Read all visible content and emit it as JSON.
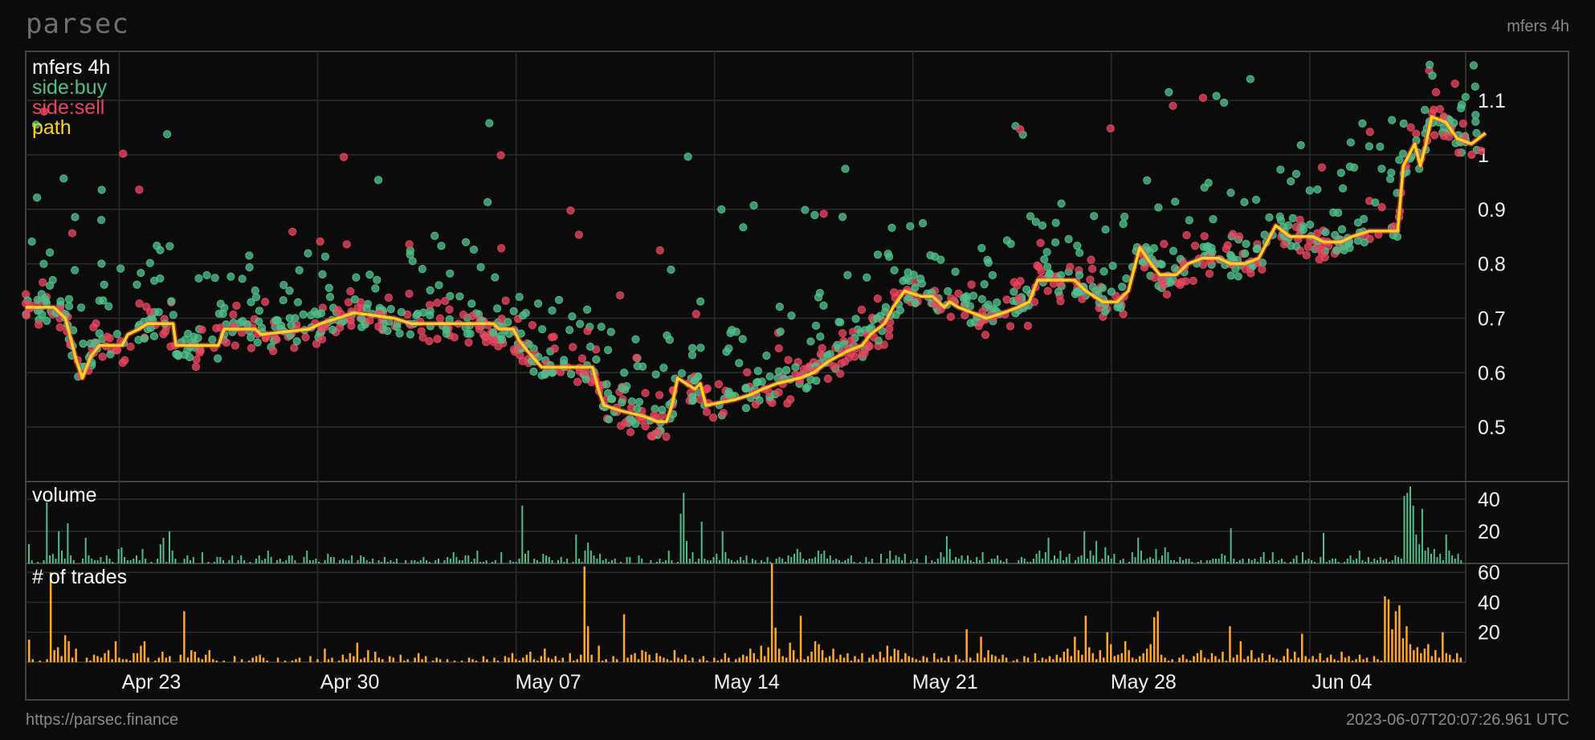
{
  "header": {
    "brand": "parsec",
    "pair": "mfers 4h"
  },
  "footer": {
    "url": "https://parsec.finance",
    "timestamp": "2023-06-07T20:07:26.961 UTC"
  },
  "colors": {
    "buy": "#4fbf8a",
    "sell": "#e8455e",
    "path": "#ffd21f",
    "trades": "#ffa828",
    "grid": "#2c2c2c",
    "frame": "#555555"
  },
  "chart_data": [
    {
      "type": "scatter",
      "legend": [
        "mfers 4h",
        "side:buy",
        "side:sell",
        "path"
      ],
      "legend_placement": "top-left",
      "x_ticks": [
        "Apr 23",
        "Apr 30",
        "May 07",
        "May 14",
        "May 21",
        "May 28",
        "Jun 04"
      ],
      "y_ticks": [
        0.5,
        0.6,
        0.7,
        0.8,
        0.9,
        1,
        1.1
      ],
      "ylim": [
        0.4,
        1.19
      ],
      "xlim": [
        0,
        50.8
      ],
      "grid": true,
      "path": [
        [
          0,
          0.72
        ],
        [
          1,
          0.72
        ],
        [
          1.4,
          0.7
        ],
        [
          1.8,
          0.62
        ],
        [
          2.0,
          0.59
        ],
        [
          2.3,
          0.63
        ],
        [
          2.6,
          0.65
        ],
        [
          3.4,
          0.65
        ],
        [
          3.6,
          0.67
        ],
        [
          4.0,
          0.68
        ],
        [
          4.3,
          0.69
        ],
        [
          5.2,
          0.69
        ],
        [
          5.3,
          0.65
        ],
        [
          6.8,
          0.65
        ],
        [
          7.0,
          0.68
        ],
        [
          8.1,
          0.68
        ],
        [
          8.3,
          0.67
        ],
        [
          10.0,
          0.68
        ],
        [
          10.4,
          0.69
        ],
        [
          11.0,
          0.7
        ],
        [
          11.6,
          0.71
        ],
        [
          13.0,
          0.7
        ],
        [
          13.6,
          0.69
        ],
        [
          16.5,
          0.69
        ],
        [
          16.7,
          0.68
        ],
        [
          17.2,
          0.68
        ],
        [
          17.4,
          0.66
        ],
        [
          17.7,
          0.64
        ],
        [
          18.2,
          0.61
        ],
        [
          20.0,
          0.61
        ],
        [
          20.2,
          0.57
        ],
        [
          20.4,
          0.54
        ],
        [
          21.0,
          0.53
        ],
        [
          21.8,
          0.52
        ],
        [
          22.3,
          0.51
        ],
        [
          22.6,
          0.51
        ],
        [
          22.8,
          0.54
        ],
        [
          23.0,
          0.59
        ],
        [
          23.3,
          0.58
        ],
        [
          23.6,
          0.57
        ],
        [
          23.8,
          0.58
        ],
        [
          24.0,
          0.54
        ],
        [
          25.0,
          0.55
        ],
        [
          25.6,
          0.56
        ],
        [
          26.0,
          0.57
        ],
        [
          26.5,
          0.58
        ],
        [
          27.3,
          0.59
        ],
        [
          27.8,
          0.6
        ],
        [
          28.3,
          0.62
        ],
        [
          29.0,
          0.64
        ],
        [
          29.5,
          0.65
        ],
        [
          29.8,
          0.67
        ],
        [
          30.3,
          0.69
        ],
        [
          30.6,
          0.72
        ],
        [
          31.0,
          0.75
        ],
        [
          31.6,
          0.74
        ],
        [
          32.0,
          0.74
        ],
        [
          32.4,
          0.72
        ],
        [
          32.6,
          0.73
        ],
        [
          32.9,
          0.72
        ],
        [
          33.4,
          0.71
        ],
        [
          33.9,
          0.7
        ],
        [
          34.5,
          0.71
        ],
        [
          35.0,
          0.72
        ],
        [
          35.4,
          0.73
        ],
        [
          35.7,
          0.77
        ],
        [
          37.0,
          0.77
        ],
        [
          37.4,
          0.75
        ],
        [
          37.7,
          0.74
        ],
        [
          38.0,
          0.73
        ],
        [
          38.5,
          0.73
        ],
        [
          38.9,
          0.75
        ],
        [
          39.3,
          0.83
        ],
        [
          39.7,
          0.8
        ],
        [
          40.0,
          0.78
        ],
        [
          40.6,
          0.78
        ],
        [
          41.0,
          0.8
        ],
        [
          41.5,
          0.81
        ],
        [
          42.1,
          0.81
        ],
        [
          42.5,
          0.8
        ],
        [
          43.0,
          0.8
        ],
        [
          43.5,
          0.81
        ],
        [
          43.8,
          0.84
        ],
        [
          44.1,
          0.87
        ],
        [
          44.6,
          0.85
        ],
        [
          45.4,
          0.85
        ],
        [
          45.8,
          0.84
        ],
        [
          46.4,
          0.84
        ],
        [
          46.8,
          0.85
        ],
        [
          47.4,
          0.86
        ],
        [
          48.4,
          0.86
        ],
        [
          48.6,
          0.98
        ],
        [
          48.8,
          1.0
        ],
        [
          49.0,
          1.02
        ],
        [
          49.2,
          0.98
        ],
        [
          49.4,
          1.02
        ],
        [
          49.6,
          1.07
        ],
        [
          50.1,
          1.06
        ],
        [
          50.5,
          1.03
        ],
        [
          51.0,
          1.02
        ],
        [
          51.5,
          1.04
        ]
      ]
    },
    {
      "type": "bar",
      "title": "volume",
      "y_ticks": [
        20,
        40
      ],
      "ylim": [
        0,
        51
      ],
      "values": [
        12,
        2,
        0,
        1,
        0,
        2,
        38,
        5,
        6,
        3,
        20,
        8,
        3,
        25,
        5,
        2,
        0,
        0,
        3,
        16,
        5,
        3,
        2,
        2,
        4,
        1,
        5,
        3,
        1,
        0,
        9,
        10,
        4,
        2,
        2,
        3,
        5,
        2,
        9,
        3,
        0,
        1,
        0,
        3,
        12,
        16,
        1,
        20,
        8,
        3,
        0,
        0,
        3,
        5,
        2,
        4,
        0,
        0,
        7,
        0,
        1,
        0,
        1,
        4,
        4,
        2,
        0,
        2,
        5,
        0,
        2,
        5,
        2,
        0,
        1,
        0,
        3,
        5,
        2,
        3,
        8,
        4,
        0,
        2,
        3,
        1,
        2,
        5,
        5,
        2,
        0,
        0,
        4,
        8,
        2,
        2,
        3,
        1,
        0,
        2,
        6,
        4,
        4,
        0,
        2,
        3,
        2,
        2,
        5,
        0,
        2,
        5,
        4,
        2,
        1,
        3,
        0,
        2,
        1,
        4,
        1,
        2,
        1,
        3,
        0,
        0,
        2,
        0,
        2,
        2,
        1,
        2,
        4,
        2,
        1,
        0,
        2,
        3,
        0,
        2,
        4,
        3,
        7,
        4,
        2,
        2,
        5,
        5,
        1,
        3,
        8,
        1,
        1,
        2,
        0,
        1,
        2,
        0,
        7,
        0,
        0,
        2,
        1,
        1,
        3,
        36,
        6,
        8,
        0,
        3,
        2,
        1,
        6,
        5,
        4,
        2,
        0,
        2,
        4,
        1,
        3,
        0,
        1,
        18,
        3,
        1,
        8,
        13,
        8,
        5,
        3,
        6,
        2,
        3,
        1,
        2,
        3,
        0,
        1,
        0,
        4,
        4,
        0,
        0,
        5,
        3,
        0,
        0,
        2,
        0,
        1,
        3,
        1,
        2,
        8,
        2,
        0,
        1,
        31,
        44,
        14,
        3,
        7,
        1,
        3,
        26,
        3,
        2,
        2,
        4,
        6,
        2,
        20,
        7,
        3,
        2,
        1,
        2,
        4,
        2,
        5,
        0,
        3,
        2,
        0,
        2,
        1,
        4,
        1,
        0,
        3,
        4,
        3,
        1,
        5,
        4,
        6,
        9,
        7,
        3,
        2,
        3,
        3,
        4,
        8,
        6,
        8,
        3,
        5,
        2,
        3,
        2,
        1,
        2,
        3,
        5,
        1,
        0,
        1,
        0,
        4,
        1,
        3,
        0,
        0,
        6,
        0,
        3,
        8,
        2,
        5,
        4,
        2,
        6,
        0,
        2,
        1,
        3,
        0,
        0,
        5,
        0,
        2,
        1,
        3,
        7,
        4,
        17,
        9,
        2,
        4,
        3,
        5,
        2,
        5,
        2,
        1,
        4,
        2,
        7,
        0,
        1,
        3,
        3,
        5,
        2,
        1,
        3,
        0,
        0,
        0,
        2,
        4,
        3,
        1,
        1,
        3,
        6,
        8,
        3,
        7,
        16,
        2,
        5,
        3,
        8,
        2,
        4,
        6,
        0,
        2,
        4,
        5,
        20,
        3,
        8,
        5,
        14,
        1,
        3,
        10,
        5,
        3,
        6,
        0,
        2,
        3,
        0,
        1,
        7,
        4,
        16,
        8,
        2,
        3,
        4,
        3,
        9,
        2,
        5,
        10,
        7,
        2,
        2,
        1,
        4,
        2,
        3,
        3,
        1,
        0,
        1,
        2,
        0,
        2,
        2,
        3,
        3,
        3,
        6,
        5,
        1,
        22,
        3,
        1,
        2,
        3,
        0,
        3,
        2,
        3,
        1,
        4,
        7,
        1,
        2,
        7,
        1,
        2,
        3,
        1,
        0,
        1,
        3,
        5,
        0,
        7,
        2,
        3,
        2,
        1,
        0,
        4,
        19,
        1,
        2,
        3,
        3,
        1,
        0,
        1,
        3,
        5,
        2,
        3,
        8,
        2,
        1,
        4,
        1,
        3,
        2,
        4,
        2,
        3,
        1,
        2,
        5,
        4,
        3,
        42,
        44,
        48,
        36,
        18,
        12,
        34,
        8,
        10,
        6,
        9,
        4,
        6,
        2,
        18,
        8,
        5,
        3,
        6,
        2
      ]
    },
    {
      "type": "bar",
      "title": "# of trades",
      "y_ticks": [
        20,
        40,
        60
      ],
      "ylim": [
        0,
        66
      ],
      "values": [
        15,
        2,
        0,
        1,
        0,
        2,
        60,
        8,
        10,
        4,
        18,
        14,
        3,
        9,
        0,
        0,
        3,
        1,
        5,
        4,
        3,
        6,
        8,
        2,
        14,
        3,
        2,
        2,
        1,
        6,
        6,
        11,
        14,
        3,
        0,
        1,
        3,
        7,
        3,
        4,
        0,
        0,
        5,
        34,
        3,
        8,
        7,
        3,
        2,
        5,
        8,
        2,
        1,
        0,
        1,
        0,
        0,
        4,
        0,
        2,
        0,
        1,
        3,
        4,
        5,
        3,
        1,
        0,
        0,
        3,
        0,
        1,
        0,
        1,
        2,
        3,
        0,
        0,
        4,
        0,
        2,
        0,
        9,
        2,
        3,
        0,
        1,
        5,
        2,
        6,
        4,
        13,
        2,
        3,
        8,
        1,
        7,
        3,
        2,
        0,
        4,
        3,
        0,
        5,
        1,
        2,
        0,
        3,
        6,
        2,
        4,
        0,
        1,
        3,
        2,
        0,
        2,
        0,
        1,
        0,
        1,
        0,
        3,
        2,
        1,
        0,
        4,
        2,
        0,
        3,
        1,
        0,
        4,
        3,
        6,
        2,
        1,
        3,
        5,
        7,
        2,
        1,
        4,
        9,
        3,
        2,
        4,
        1,
        3,
        0,
        6,
        1,
        2,
        5,
        64,
        24,
        5,
        0,
        11,
        1,
        2,
        0,
        4,
        2,
        0,
        32,
        3,
        5,
        6,
        2,
        8,
        7,
        5,
        1,
        6,
        4,
        3,
        2,
        1,
        8,
        3,
        2,
        5,
        1,
        3,
        0,
        2,
        4,
        1,
        0,
        3,
        1,
        2,
        6,
        3,
        0,
        2,
        3,
        5,
        4,
        9,
        6,
        2,
        11,
        4,
        10,
        66,
        23,
        9,
        4,
        3,
        13,
        8,
        2,
        31,
        2,
        4,
        7,
        14,
        12,
        8,
        3,
        4,
        9,
        2,
        5,
        3,
        6,
        1,
        4,
        2,
        6,
        0,
        3,
        5,
        2,
        7,
        3,
        11,
        4,
        9,
        8,
        2,
        6,
        4,
        3,
        2,
        1,
        4,
        3,
        0,
        6,
        2,
        3,
        1,
        4,
        0,
        5,
        2,
        1,
        22,
        3,
        1,
        6,
        17,
        3,
        8,
        5,
        4,
        2,
        5,
        3,
        0,
        1,
        2,
        0,
        4,
        3,
        0,
        6,
        1,
        3,
        2,
        4,
        2,
        5,
        3,
        7,
        9,
        4,
        17,
        8,
        5,
        31,
        10,
        6,
        2,
        8,
        3,
        20,
        12,
        4,
        5,
        6,
        14,
        8,
        3,
        2,
        4,
        6,
        9,
        12,
        30,
        34,
        5,
        3,
        1,
        2,
        0,
        3,
        5,
        2,
        1,
        4,
        6,
        8,
        3,
        2,
        6,
        4,
        2,
        7,
        1,
        24,
        3,
        5,
        14,
        2,
        4,
        8,
        2,
        3,
        6,
        1,
        5,
        3,
        2,
        1,
        4,
        9,
        2,
        7,
        3,
        19,
        4,
        2,
        4,
        2,
        6,
        1,
        3,
        5,
        2,
        1,
        7,
        3,
        4,
        1,
        2,
        5,
        2,
        3,
        0,
        4,
        2,
        1,
        44,
        42,
        22,
        34,
        38,
        16,
        24,
        12,
        8,
        10,
        6,
        9,
        12,
        4,
        8,
        3,
        20,
        6,
        5,
        2,
        6,
        3
      ]
    }
  ]
}
